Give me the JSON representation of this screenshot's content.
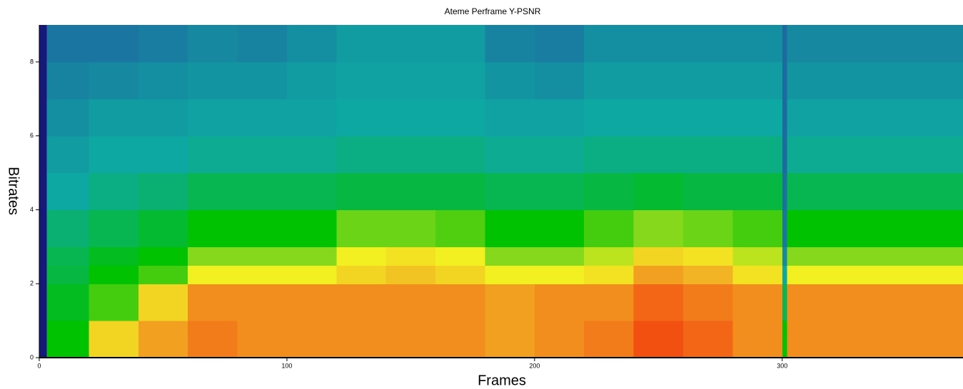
{
  "chart_data": {
    "type": "heatmap",
    "title": "Ateme Perframe Y-PSNR",
    "x_label": "Frames",
    "y_label": "Bitrates",
    "xlim": [
      0,
      373
    ],
    "ylim": [
      0,
      9
    ],
    "xticks": [
      0,
      100,
      200,
      300
    ],
    "yticks": [
      0,
      2,
      4,
      6,
      8
    ],
    "x_edges": [
      0,
      3,
      20,
      40,
      60,
      80,
      100,
      120,
      140,
      160,
      180,
      200,
      220,
      240,
      260,
      280,
      300,
      302,
      320,
      340,
      360,
      373
    ],
    "y_edges": [
      0,
      1,
      2,
      2.5,
      3,
      4,
      5,
      6,
      7,
      8,
      9
    ],
    "zlim": [
      0,
      10
    ],
    "colormap": [
      "#16187a",
      "#1d6aa0",
      "#0ea8a2",
      "#00c200",
      "#86d81c",
      "#f2f020",
      "#f2d422",
      "#f2b424",
      "#f2a020",
      "#f27c1a",
      "#f25010"
    ],
    "z": [
      [
        0,
        3,
        6,
        8,
        9,
        8.5,
        8.5,
        8.5,
        8.5,
        8.5,
        8,
        8.5,
        9,
        10,
        9.5,
        8.5,
        3,
        8.5,
        8.5,
        8.5,
        8.5
      ],
      [
        0,
        2.8,
        3.5,
        6,
        8.5,
        8.5,
        8.5,
        8.5,
        8.5,
        8.5,
        8,
        8.5,
        8.5,
        9.5,
        9,
        8.5,
        2.5,
        8.5,
        8.5,
        8.5,
        8.5
      ],
      [
        0,
        2.6,
        3,
        3.5,
        5,
        5,
        5,
        6,
        6.5,
        6,
        5,
        5,
        5.5,
        8,
        7,
        5.5,
        2,
        5,
        5,
        5,
        5
      ],
      [
        0,
        2.5,
        2.8,
        3,
        4,
        4,
        4,
        5,
        5.5,
        5,
        4,
        4,
        4.5,
        6,
        5.5,
        4.5,
        1.5,
        4,
        4,
        4,
        4
      ],
      [
        0,
        2.3,
        2.5,
        2.7,
        3,
        3,
        3,
        3.8,
        3.8,
        3.6,
        3,
        3,
        3.5,
        4,
        3.8,
        3.5,
        1.2,
        3,
        3,
        3,
        3
      ],
      [
        0,
        2,
        2.2,
        2.3,
        2.5,
        2.5,
        2.5,
        2.6,
        2.6,
        2.6,
        2.5,
        2.5,
        2.6,
        2.7,
        2.6,
        2.6,
        1.1,
        2.5,
        2.5,
        2.5,
        2.5
      ],
      [
        0,
        1.8,
        2,
        2,
        2.1,
        2.1,
        2.1,
        2.2,
        2.2,
        2.2,
        2.1,
        2.1,
        2.2,
        2.2,
        2.2,
        2.2,
        1,
        2.1,
        2.1,
        2.1,
        2.1
      ],
      [
        0,
        1.6,
        1.8,
        1.8,
        1.9,
        1.9,
        1.9,
        2,
        2,
        2,
        1.9,
        1.9,
        2,
        2,
        2,
        2,
        1,
        1.9,
        1.9,
        1.9,
        1.9
      ],
      [
        0,
        1.4,
        1.5,
        1.6,
        1.7,
        1.7,
        1.8,
        1.9,
        1.9,
        1.9,
        1.7,
        1.6,
        1.8,
        1.8,
        1.8,
        1.8,
        1,
        1.7,
        1.7,
        1.7,
        1.7
      ],
      [
        0,
        1.2,
        1.2,
        1.3,
        1.5,
        1.4,
        1.6,
        1.8,
        1.8,
        1.8,
        1.4,
        1.3,
        1.6,
        1.6,
        1.6,
        1.6,
        1,
        1.5,
        1.5,
        1.5,
        1.5
      ]
    ]
  }
}
